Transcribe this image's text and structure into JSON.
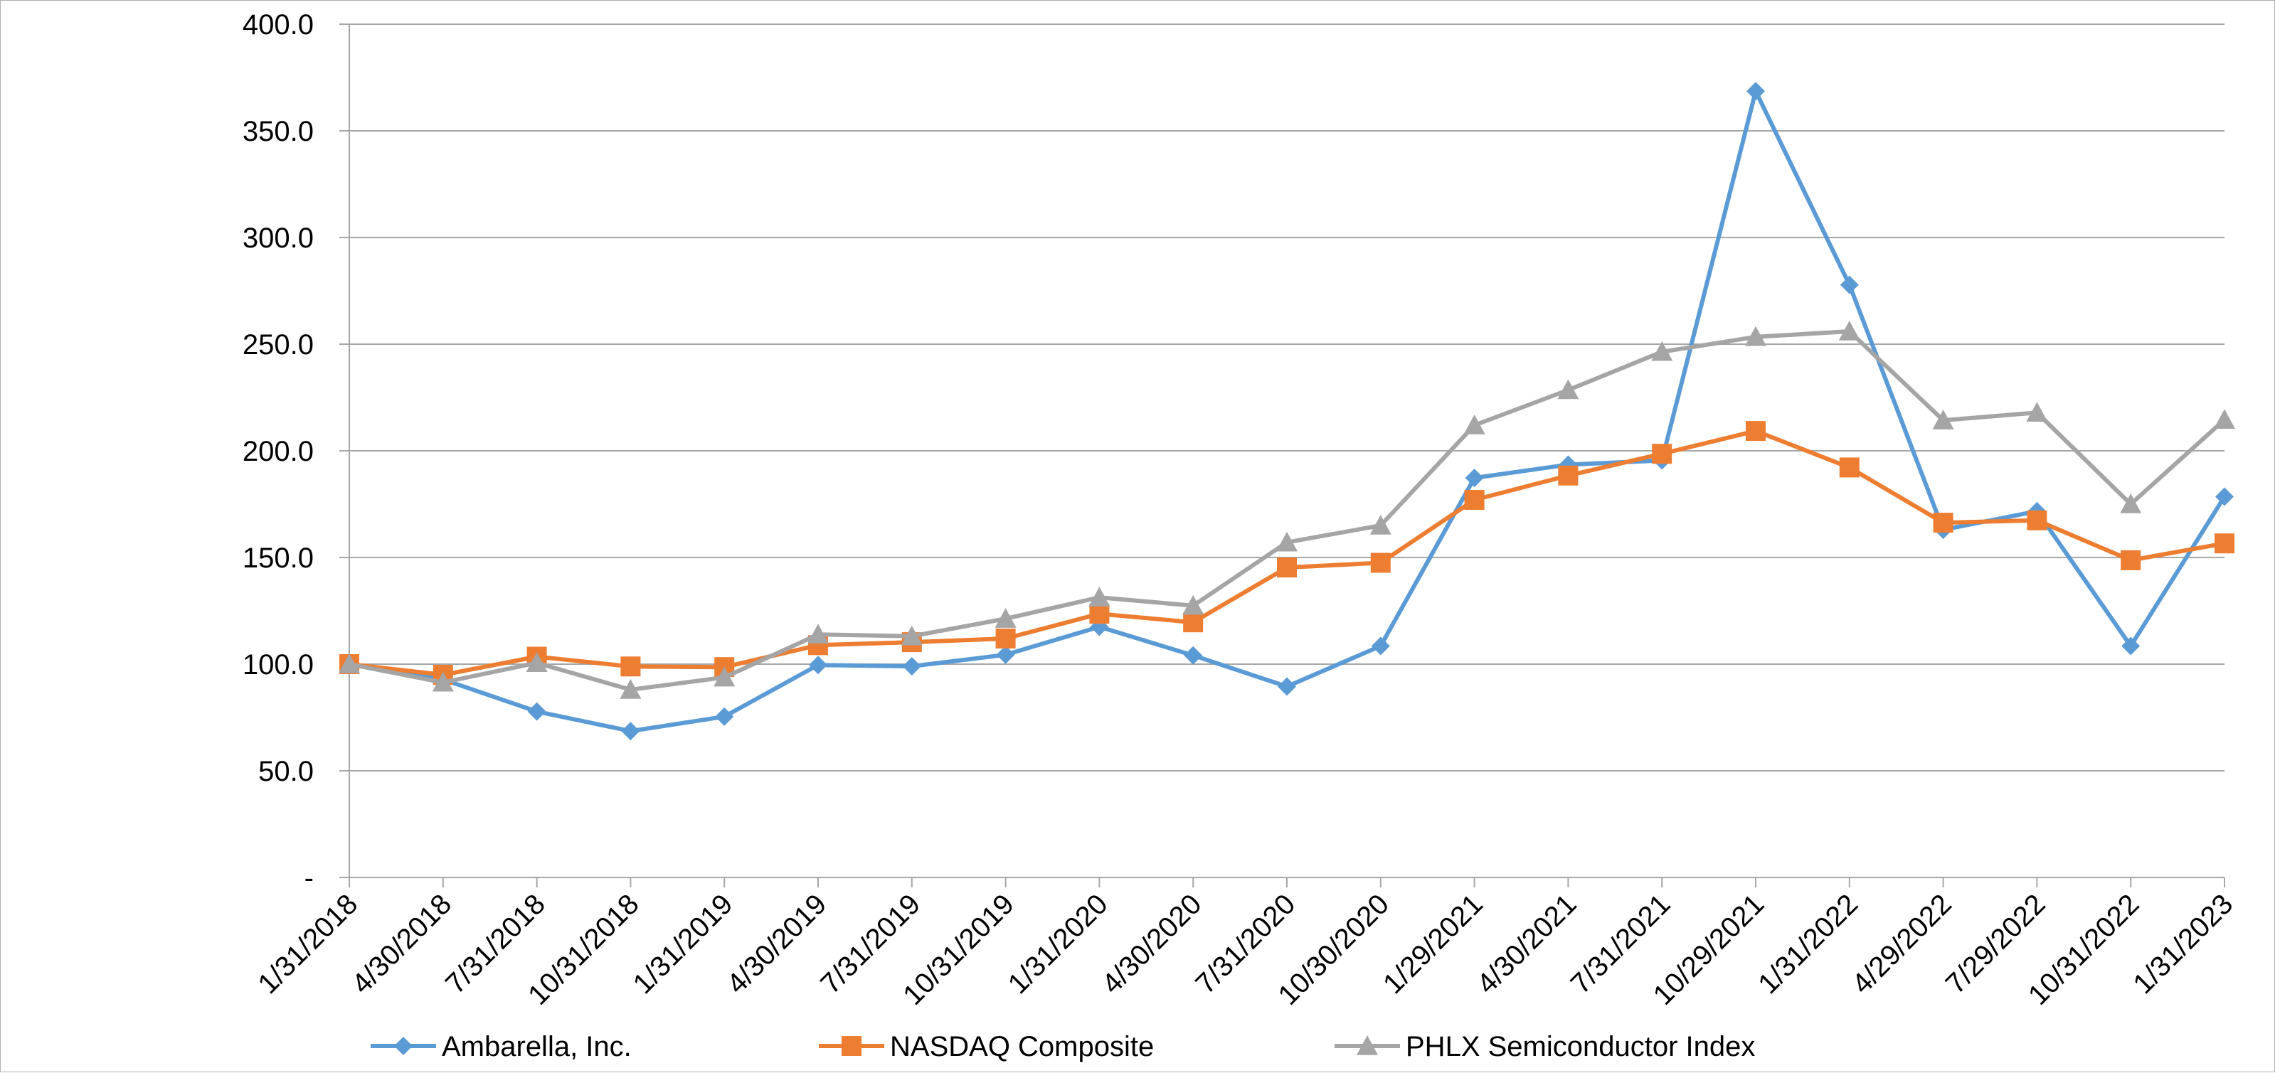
{
  "chart_data": {
    "type": "line",
    "title": "",
    "xlabel": "",
    "ylabel": "",
    "categories": [
      "1/31/2018",
      "4/30/2018",
      "7/31/2018",
      "10/31/2018",
      "1/31/2019",
      "4/30/2019",
      "7/31/2019",
      "10/31/2019",
      "1/31/2020",
      "4/30/2020",
      "7/31/2020",
      "10/30/2020",
      "1/29/2021",
      "4/30/2021",
      "7/31/2021",
      "10/29/2021",
      "1/31/2022",
      "4/29/2022",
      "7/29/2022",
      "10/31/2022",
      "1/31/2023"
    ],
    "ylim": [
      0,
      400
    ],
    "yticks": [
      0,
      50,
      100,
      150,
      200,
      250,
      300,
      350,
      400
    ],
    "ytick_labels": [
      "-",
      "50.0",
      "100.0",
      "150.0",
      "200.0",
      "250.0",
      "300.0",
      "350.0",
      "400.0"
    ],
    "grid": true,
    "legend_position": "bottom",
    "series": [
      {
        "name": "Ambarella, Inc.",
        "color": "#5b9bd5",
        "marker": "diamond",
        "values": [
          100.0,
          92.8,
          77.8,
          68.6,
          75.4,
          99.6,
          99.0,
          104.4,
          117.5,
          104.1,
          89.5,
          108.5,
          187.3,
          193.5,
          195.5,
          368.6,
          277.8,
          163.0,
          171.7,
          108.5,
          178.5
        ]
      },
      {
        "name": "NASDAQ Composite",
        "color": "#ed7d31",
        "marker": "square",
        "values": [
          100.0,
          95.0,
          103.5,
          98.9,
          98.6,
          108.9,
          110.3,
          112.0,
          123.6,
          119.6,
          145.3,
          147.5,
          177.0,
          188.4,
          198.6,
          209.3,
          192.2,
          166.3,
          167.4,
          148.7,
          156.6
        ]
      },
      {
        "name": "PHLX Semiconductor Index",
        "color": "#a5a5a5",
        "marker": "triangle",
        "values": [
          100.0,
          91.4,
          100.6,
          88.0,
          93.8,
          113.9,
          113.1,
          121.3,
          131.3,
          127.4,
          157.1,
          165.0,
          212.0,
          228.5,
          246.4,
          253.4,
          256.0,
          214.3,
          217.9,
          175.0,
          214.6
        ]
      }
    ]
  }
}
